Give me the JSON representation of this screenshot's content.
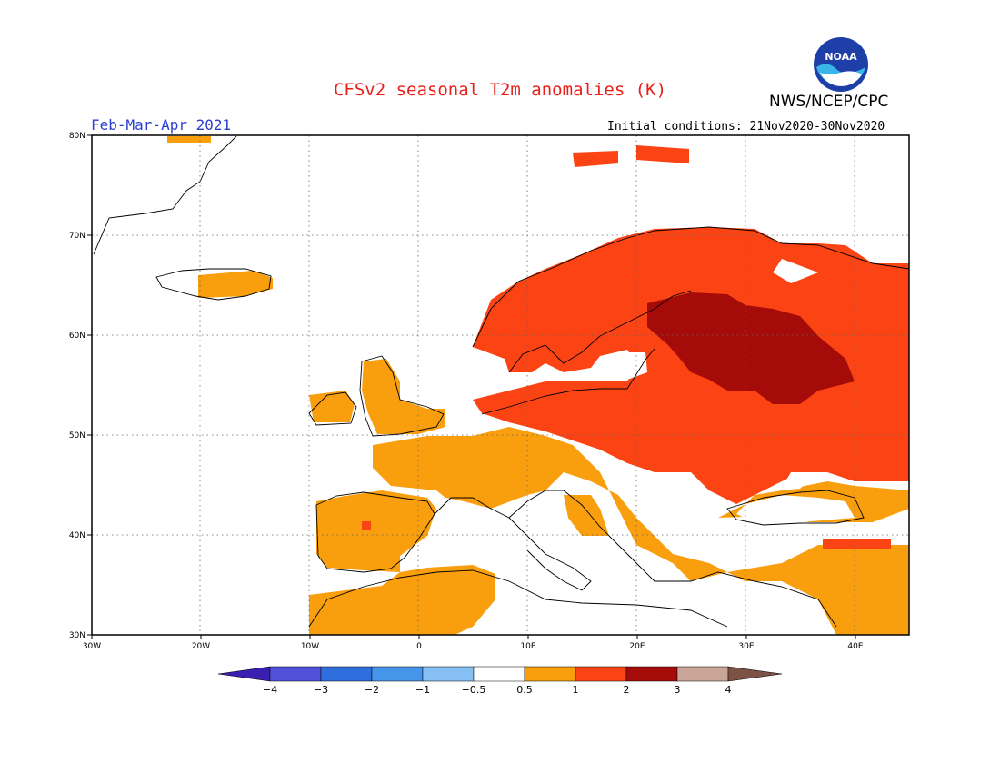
{
  "header": {
    "title": "CFSv2 seasonal T2m anomalies (K)",
    "agency": "NWS/NCEP/CPC",
    "period": "Feb-Mar-Apr 2021",
    "initial_conditions": "Initial conditions: 21Nov2020-30Nov2020",
    "logo_text": "NOAA"
  },
  "map": {
    "region": "Europe",
    "lon_range": [
      -30,
      45
    ],
    "lat_range": [
      30,
      80
    ],
    "lon_ticks": [
      "30W",
      "20W",
      "10W",
      "0",
      "10E",
      "20E",
      "30E",
      "40E"
    ],
    "lat_ticks": [
      "80N",
      "70N",
      "60N",
      "50N",
      "40N",
      "30N"
    ],
    "gridlines": true
  },
  "colorbar": {
    "labels": [
      "-4",
      "-3",
      "-2",
      "-1",
      "-0.5",
      "0.5",
      "1",
      "2",
      "3",
      "4"
    ],
    "colors": [
      "#3a1fb0",
      "#5050d8",
      "#2f6fdd",
      "#4595ea",
      "#86bff3",
      "#ffffff",
      "#f99e0c",
      "#fb4314",
      "#a50b08",
      "#c9a597",
      "#7b5243"
    ]
  }
}
